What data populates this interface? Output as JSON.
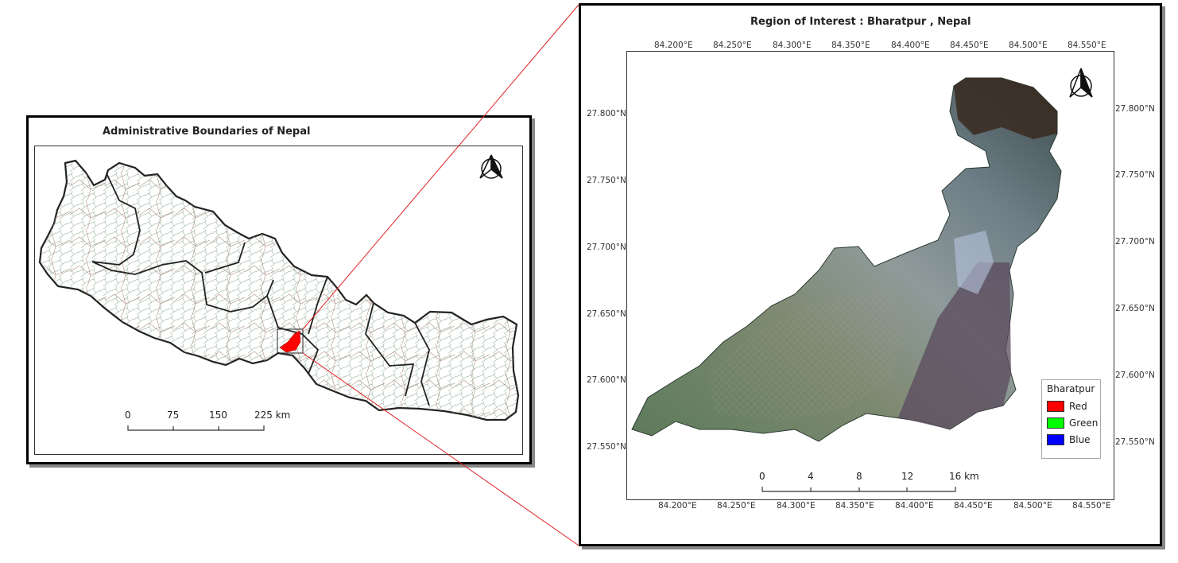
{
  "left_map": {
    "title": "Administrative Boundaries of Nepal",
    "scale_labels": [
      "0",
      "75",
      "150",
      "225 km"
    ],
    "north_arrow_icon": "north-arrow-icon",
    "highlight_color": "#ff0000"
  },
  "right_map": {
    "title": "Region of Interest : Bharatpur , Nepal",
    "lon_ticks_top": [
      "84.200°E",
      "84.250°E",
      "84.300°E",
      "84.350°E",
      "84.400°E",
      "84.450°E",
      "84.500°E",
      "84.550°E"
    ],
    "lon_ticks_bottom": [
      "84.200°E",
      "84.250°E",
      "84.300°E",
      "84.350°E",
      "84.400°E",
      "84.450°E",
      "84.500°E",
      "84.550°E"
    ],
    "lat_ticks_left": [
      "27.800°N",
      "27.750°N",
      "27.700°N",
      "27.650°N",
      "27.600°N",
      "27.550°N"
    ],
    "lat_ticks_right": [
      "27.800°N",
      "27.750°N",
      "27.700°N",
      "27.650°N",
      "27.600°N",
      "27.550°N"
    ],
    "scale_labels": [
      "0",
      "4",
      "8",
      "12",
      "16 km"
    ],
    "north_arrow_icon": "north-arrow-icon",
    "legend": {
      "title": "Bharatpur",
      "items": [
        {
          "label": "Red",
          "color": "#ff0000"
        },
        {
          "label": "Green",
          "color": "#00ff00"
        },
        {
          "label": "Blue",
          "color": "#0000ff"
        }
      ]
    }
  },
  "connector_color": "#e02020"
}
